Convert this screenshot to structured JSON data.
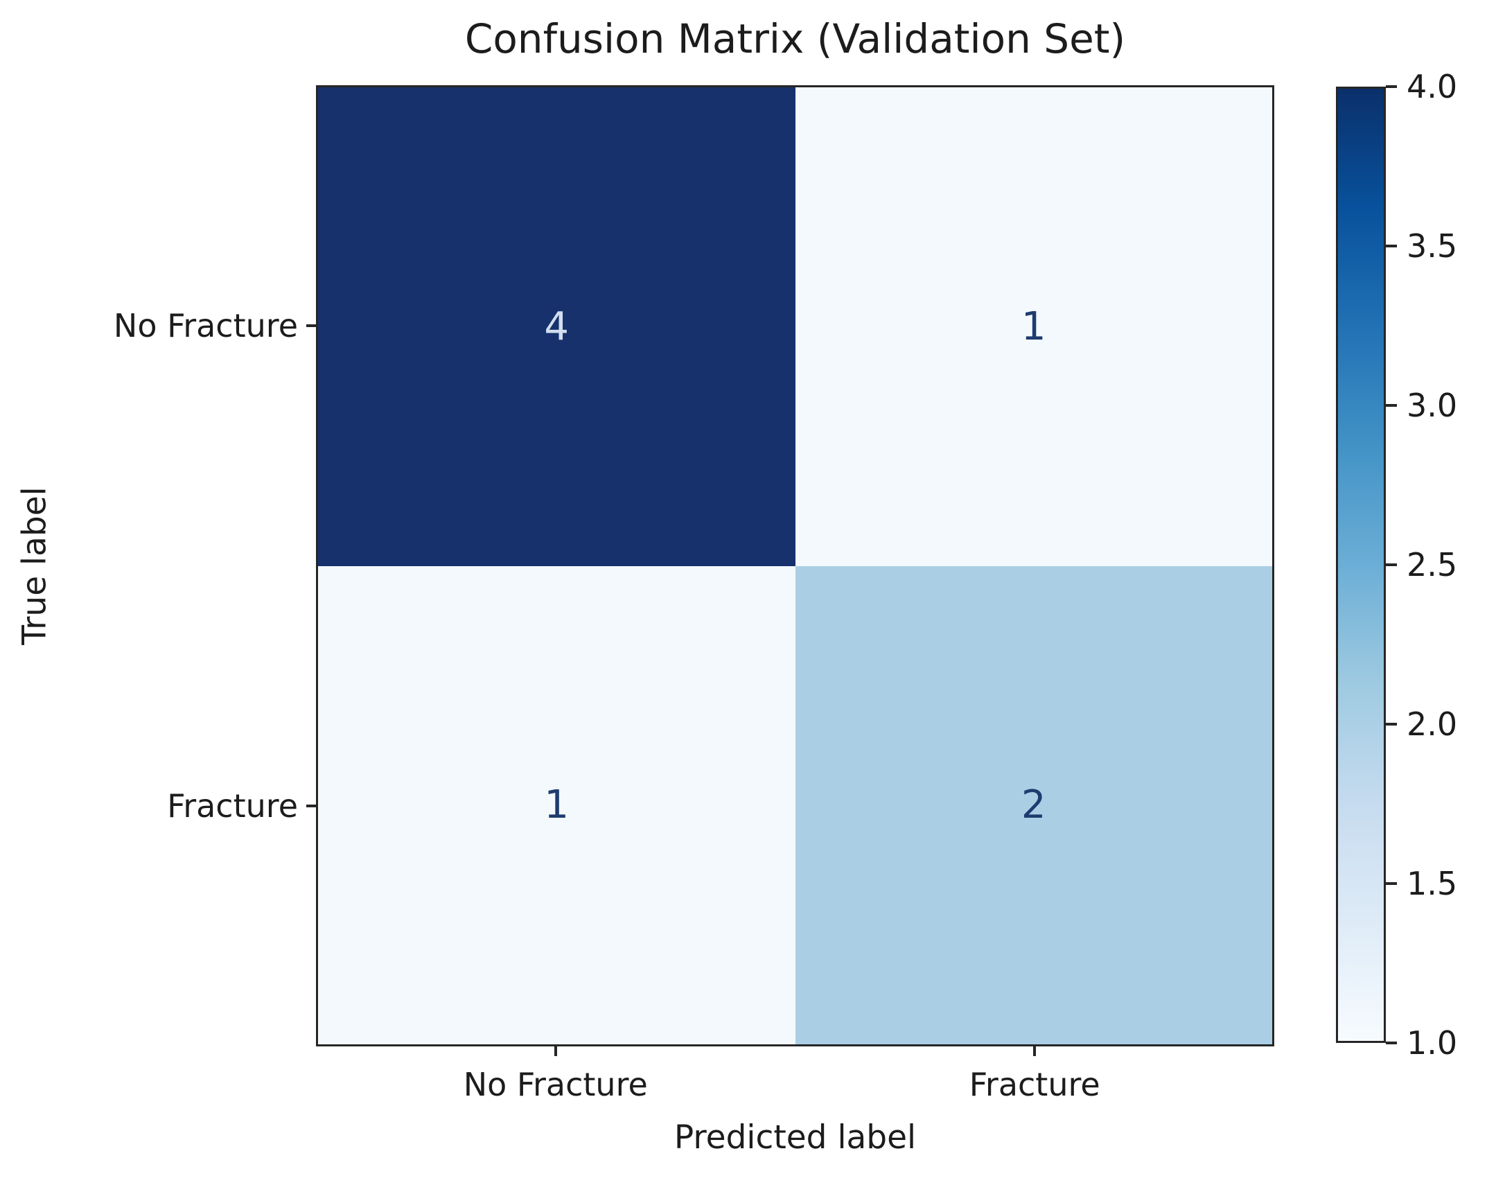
{
  "chart_data": {
    "type": "heatmap",
    "title": "Confusion Matrix (Validation Set)",
    "xlabel": "Predicted label",
    "ylabel": "True label",
    "x_categories": [
      "No Fracture",
      "Fracture"
    ],
    "y_categories": [
      "No Fracture",
      "Fracture"
    ],
    "matrix": [
      [
        4,
        1
      ],
      [
        1,
        2
      ]
    ],
    "vmin": 1.0,
    "vmax": 4.0,
    "colormap": "Blues",
    "grid": false,
    "legend_position": "right-colorbar",
    "colorbar_ticks": [
      "4.0",
      "3.5",
      "3.0",
      "2.5",
      "2.0",
      "1.5",
      "1.0"
    ],
    "colors": {
      "cell_value_4_bg": "#16316c",
      "cell_value_2_bg": "#aacfe5",
      "cell_value_1_bg": "#f4f9fd",
      "text_on_dark": "#d3deee",
      "text_on_light": "#1e3c6e",
      "axis_text": "#1c1c1c",
      "spine": "#262626",
      "colorbar_gradient_stops": [
        "#0a306b",
        "#08519c",
        "#2171b5",
        "#4292c6",
        "#6baed6",
        "#9ecae1",
        "#c6dbef",
        "#deebf7",
        "#f7fbff"
      ]
    }
  }
}
